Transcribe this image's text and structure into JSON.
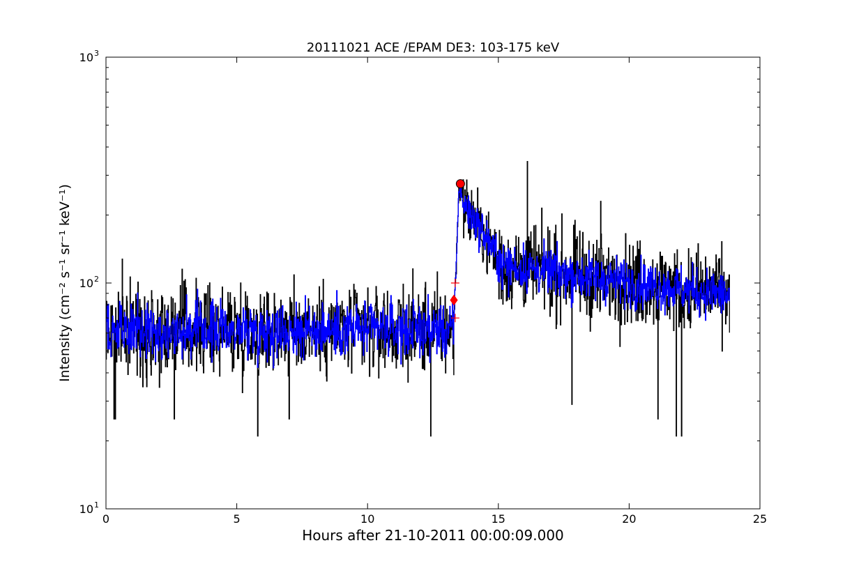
{
  "chart_data": {
    "type": "line",
    "title": "20111021 ACE /EPAM DE3: 103-175 keV",
    "xlabel": "Hours after 21-10-2011 00:00:09.000",
    "ylabel": "Intensity (cm⁻² s⁻¹ sr⁻¹ keV⁻¹)",
    "xlim": [
      0,
      25
    ],
    "ylim": [
      10,
      1000
    ],
    "yscale": "log",
    "grid": false,
    "legend": "none",
    "x_ticks": [
      0,
      5,
      10,
      15,
      20,
      25
    ],
    "x_tick_labels": [
      "0",
      "5",
      "10",
      "15",
      "20",
      "25"
    ],
    "y_ticks": [
      10,
      100,
      1000
    ],
    "y_tick_labels": [
      "10",
      "10",
      "10"
    ],
    "y_tick_exponents": [
      "1",
      "2",
      "3"
    ],
    "series": [
      {
        "color": "#000000",
        "segments": [
          {
            "x_start": 0.0,
            "x_end": 13.3,
            "baseline": 62,
            "spread": 0.42
          },
          {
            "x_start": 13.3,
            "x_end": 13.6,
            "baseline": 190,
            "spread": 0.1
          },
          {
            "x_start": 13.6,
            "x_end": 15.0,
            "baseline": 160,
            "spread": 0.3
          },
          {
            "x_start": 15.0,
            "x_end": 23.85,
            "baseline": 105,
            "spread": 0.4
          }
        ],
        "spikes": [
          {
            "x": 0.35,
            "y": 25
          },
          {
            "x": 0.3,
            "y": 25
          },
          {
            "x": 5.8,
            "y": 21
          },
          {
            "x": 12.4,
            "y": 21
          },
          {
            "x": 16.1,
            "y": 345
          },
          {
            "x": 18.9,
            "y": 230
          },
          {
            "x": 21.8,
            "y": 21
          },
          {
            "x": 22.0,
            "y": 21
          },
          {
            "x": 21.1,
            "y": 25
          },
          {
            "x": 17.8,
            "y": 29
          },
          {
            "x": 2.6,
            "y": 25
          },
          {
            "x": 7.0,
            "y": 25
          }
        ]
      },
      {
        "color": "#0000ff",
        "segments": [
          {
            "x_start": 0.0,
            "x_end": 13.3,
            "baseline": 62,
            "spread": 0.25
          },
          {
            "x_start": 13.3,
            "x_end": 13.6,
            "baseline": 200,
            "spread": 0.08
          },
          {
            "x_start": 13.6,
            "x_end": 15.0,
            "baseline": 160,
            "spread": 0.18
          },
          {
            "x_start": 15.0,
            "x_end": 23.85,
            "baseline": 100,
            "spread": 0.22
          }
        ]
      }
    ],
    "markers": [
      {
        "shape": "circle",
        "x": 13.55,
        "y": 275,
        "color": "#ff0000"
      },
      {
        "shape": "diamond",
        "x": 13.3,
        "y": 84,
        "color": "#ff0000"
      },
      {
        "shape": "plus",
        "x": 13.35,
        "y": 100,
        "color": "#ff0000"
      },
      {
        "shape": "plus",
        "x": 13.35,
        "y": 70,
        "color": "#ff0000"
      }
    ]
  }
}
